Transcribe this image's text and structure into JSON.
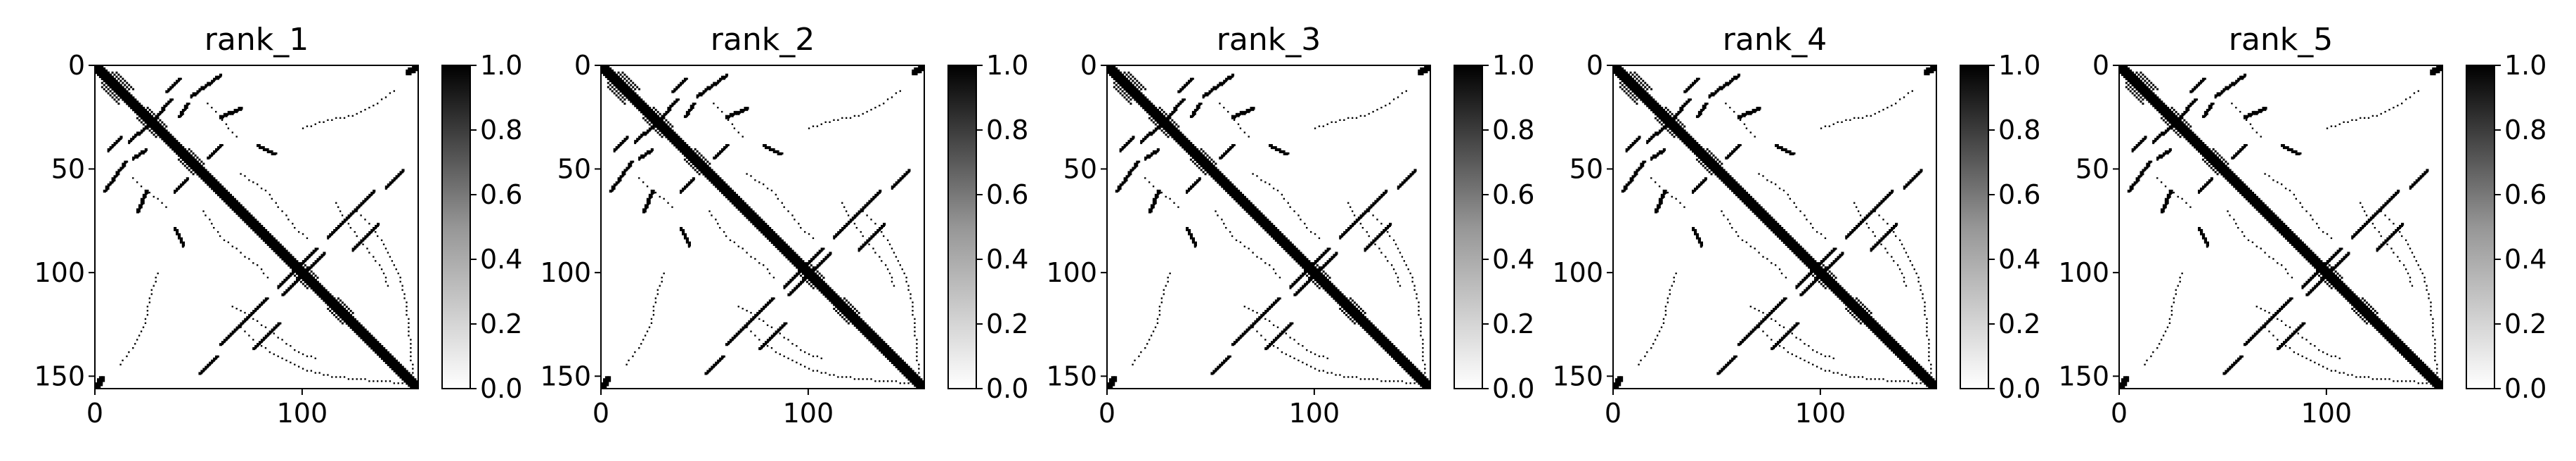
{
  "figure": {
    "background": "#ffffff"
  },
  "chart_data": [
    {
      "type": "heatmap",
      "title": "rank_1",
      "matrix_size": 156,
      "xlim": [
        0,
        156
      ],
      "ylim": [
        156,
        0
      ],
      "xticks": [
        0,
        100
      ],
      "yticks": [
        0,
        50,
        100,
        150
      ],
      "colorbar": {
        "min": 0.0,
        "max": 1.0,
        "ticks": [
          "0.0",
          "0.2",
          "0.4",
          "0.6",
          "0.8",
          "1.0"
        ],
        "colormap": "Greys"
      },
      "grid": false
    },
    {
      "type": "heatmap",
      "title": "rank_2",
      "matrix_size": 156,
      "xlim": [
        0,
        156
      ],
      "ylim": [
        156,
        0
      ],
      "xticks": [
        0,
        100
      ],
      "yticks": [
        0,
        50,
        100,
        150
      ],
      "colorbar": {
        "min": 0.0,
        "max": 1.0,
        "ticks": [
          "0.0",
          "0.2",
          "0.4",
          "0.6",
          "0.8",
          "1.0"
        ],
        "colormap": "Greys"
      },
      "grid": false
    },
    {
      "type": "heatmap",
      "title": "rank_3",
      "matrix_size": 156,
      "xlim": [
        0,
        156
      ],
      "ylim": [
        156,
        0
      ],
      "xticks": [
        0,
        100
      ],
      "yticks": [
        0,
        50,
        100,
        150
      ],
      "colorbar": {
        "min": 0.0,
        "max": 1.0,
        "ticks": [
          "0.0",
          "0.2",
          "0.4",
          "0.6",
          "0.8",
          "1.0"
        ],
        "colormap": "Greys"
      },
      "grid": false
    },
    {
      "type": "heatmap",
      "title": "rank_4",
      "matrix_size": 156,
      "xlim": [
        0,
        156
      ],
      "ylim": [
        156,
        0
      ],
      "xticks": [
        0,
        100
      ],
      "yticks": [
        0,
        50,
        100,
        150
      ],
      "colorbar": {
        "min": 0.0,
        "max": 1.0,
        "ticks": [
          "0.0",
          "0.2",
          "0.4",
          "0.6",
          "0.8",
          "1.0"
        ],
        "colormap": "Greys"
      },
      "grid": false
    },
    {
      "type": "heatmap",
      "title": "rank_5",
      "matrix_size": 156,
      "xlim": [
        0,
        156
      ],
      "ylim": [
        156,
        0
      ],
      "xticks": [
        0,
        100
      ],
      "yticks": [
        0,
        50,
        100,
        150
      ],
      "colorbar": {
        "min": 0.0,
        "max": 1.0,
        "ticks": [
          "0.0",
          "0.2",
          "0.4",
          "0.6",
          "0.8",
          "1.0"
        ],
        "colormap": "Greys"
      },
      "grid": false
    }
  ],
  "contact_features": {
    "diagonal_band": [
      [
        0,
        156,
        3
      ]
    ],
    "helix_blocks": [
      [
        3,
        12,
        5
      ],
      [
        20,
        30,
        3
      ],
      [
        40,
        48,
        3
      ],
      [
        95,
        103,
        3
      ],
      [
        112,
        120,
        3
      ]
    ],
    "strand_segments": [
      [
        6,
        40,
        12,
        34,
        1
      ],
      [
        16,
        36,
        26,
        27,
        1
      ],
      [
        18,
        44,
        24,
        40,
        1
      ],
      [
        38,
        60,
        44,
        54,
        1
      ],
      [
        88,
        106,
        100,
        94,
        1
      ],
      [
        102,
        98,
        110,
        90,
        1
      ],
      [
        112,
        82,
        122,
        72,
        1
      ],
      [
        122,
        72,
        134,
        60,
        1
      ],
      [
        124,
        88,
        136,
        76,
        1
      ],
      [
        140,
        58,
        148,
        50,
        1
      ],
      [
        150,
        2,
        153,
        0,
        2
      ],
      [
        46,
        14,
        60,
        4,
        1
      ],
      [
        60,
        24,
        70,
        20,
        1
      ],
      [
        38,
        78,
        42,
        86,
        1
      ]
    ],
    "dotted_arcs": [
      [
        [
          52,
          70
        ],
        [
          60,
          82
        ],
        [
          70,
          90
        ],
        [
          78,
          96
        ],
        [
          84,
          104
        ]
      ],
      [
        [
          126,
          70
        ],
        [
          134,
          78
        ],
        [
          140,
          88
        ],
        [
          146,
          100
        ],
        [
          150,
          116
        ],
        [
          152,
          136
        ],
        [
          153,
          150
        ]
      ],
      [
        [
          66,
          116
        ],
        [
          74,
          120
        ],
        [
          82,
          126
        ],
        [
          90,
          132
        ],
        [
          98,
          138
        ],
        [
          108,
          142
        ]
      ],
      [
        [
          18,
          54
        ],
        [
          24,
          60
        ],
        [
          30,
          64
        ],
        [
          36,
          70
        ]
      ],
      [
        [
          100,
          30
        ],
        [
          112,
          26
        ],
        [
          124,
          24
        ],
        [
          136,
          18
        ],
        [
          146,
          10
        ]
      ]
    ]
  }
}
